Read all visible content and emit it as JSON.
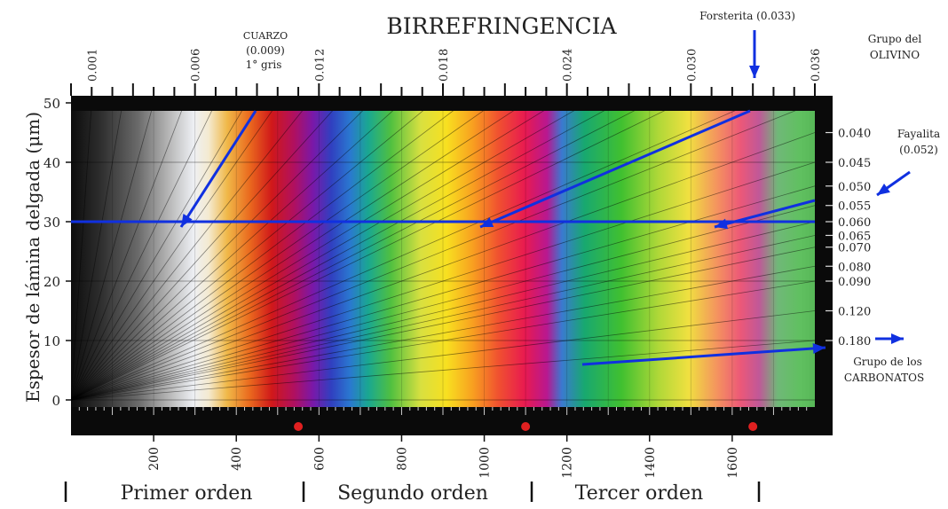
{
  "chart_data": {
    "type": "interference_color_chart",
    "title": "BIRREFRINGENCIA",
    "ylabel": "Espesor de lámina delgada (μm)",
    "ylim": [
      0,
      50
    ],
    "xlim": [
      0,
      1800
    ],
    "y_ticks": [
      "0",
      "10",
      "20",
      "30",
      "40",
      "50"
    ],
    "x_ticks": [
      {
        "value": 200,
        "label": "200"
      },
      {
        "value": 400,
        "label": "400"
      },
      {
        "value": 600,
        "label": "600"
      },
      {
        "value": 800,
        "label": "800"
      },
      {
        "value": 1000,
        "label": "1000"
      },
      {
        "value": 1200,
        "label": "1200"
      },
      {
        "value": 1400,
        "label": "1400"
      },
      {
        "value": 1600,
        "label": "1600"
      }
    ],
    "top_birefringence_ticks": [
      "0.001",
      "0.006",
      "0.012",
      "0.018",
      "0.024",
      "0.030",
      "0.036"
    ],
    "right_birefringence_ticks": [
      "0.040",
      "0.045",
      "0.050",
      "0.055",
      "0.060",
      "0.065",
      "0.070",
      "0.080",
      "0.090",
      "0.120",
      "0.180"
    ],
    "orders": [
      "Primer orden",
      "Segundo orden",
      "Tercer orden"
    ],
    "order_boundaries_nm": [
      550,
      1100,
      1650
    ],
    "highlight_thickness_um": 30,
    "annotations": {
      "quartz": {
        "name": "CUARZO",
        "value": "(0.009)",
        "color_note": "1° gris"
      },
      "forsterite": {
        "label": "Forsterita (0.033)"
      },
      "olivine_group": {
        "line1": "Grupo del",
        "line2": "OLIVINO"
      },
      "fayalite": {
        "line1": "Fayalita",
        "line2": "(0.052)"
      },
      "carbonates": {
        "line1": "Grupo de los",
        "line2": "CARBONATOS"
      }
    }
  },
  "colors": {
    "arrow": "#1030e0",
    "highlight_line": "#1030e0",
    "marker": "#e02020"
  }
}
